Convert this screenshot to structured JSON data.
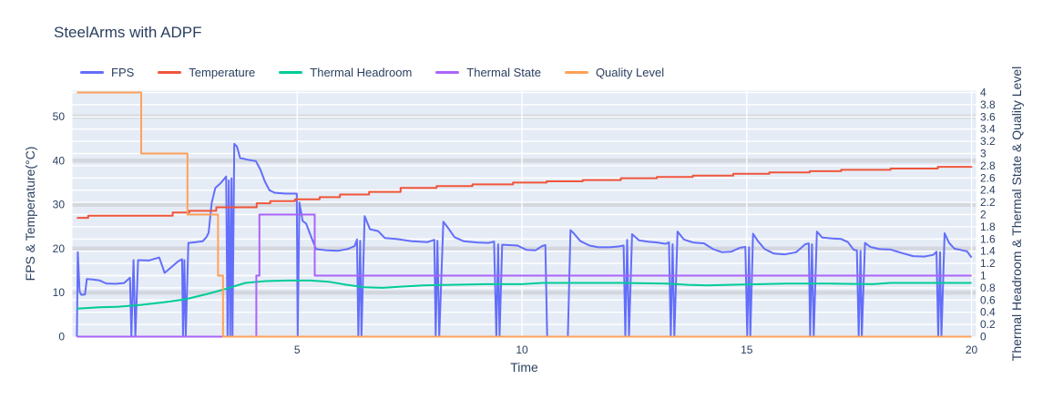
{
  "title": "SteelArms with ADPF",
  "styles": {
    "plot_bg": "#e5ecf6",
    "grid_white": "#ffffff",
    "grid_gray": "#d4d8de",
    "text": "#2a3f5f"
  },
  "chart_data": {
    "type": "line",
    "title": "SteelArms with ADPF",
    "xlabel": "Time",
    "ylabel_left": "FPS & Temperature(°C)",
    "ylabel_right": "Thermal Headroom & Thermal State & Quality Level",
    "legend_position": "top-left",
    "grid": true,
    "x_range": [
      0,
      20.1
    ],
    "x_ticks": [
      5,
      10,
      15,
      20
    ],
    "y_left": {
      "range": [
        0,
        55.9
      ],
      "ticks": [
        0,
        10,
        20,
        30,
        40,
        50
      ]
    },
    "y_right": {
      "range": [
        0,
        4.03
      ],
      "tick_step": 0.2,
      "tick_count": 21
    },
    "series": [
      {
        "name": "FPS",
        "color": "#636EFA",
        "axis": "left",
        "interp": "linear",
        "points": [
          [
            0.1,
            0
          ],
          [
            0.12,
            19.2
          ],
          [
            0.16,
            10.2
          ],
          [
            0.2,
            9.5
          ],
          [
            0.28,
            9.6
          ],
          [
            0.32,
            13.1
          ],
          [
            0.45,
            13.0
          ],
          [
            0.6,
            12.8
          ],
          [
            0.75,
            12.1
          ],
          [
            0.95,
            12.0
          ],
          [
            1.15,
            12.2
          ],
          [
            1.28,
            13.4
          ],
          [
            1.31,
            0
          ],
          [
            1.36,
            17.4
          ],
          [
            1.4,
            0
          ],
          [
            1.46,
            17.4
          ],
          [
            1.7,
            17.3
          ],
          [
            1.93,
            18.0
          ],
          [
            2.0,
            16.0
          ],
          [
            2.05,
            14.5
          ],
          [
            2.2,
            15.8
          ],
          [
            2.35,
            17.1
          ],
          [
            2.44,
            17.6
          ],
          [
            2.46,
            0
          ],
          [
            2.49,
            17.4
          ],
          [
            2.52,
            0
          ],
          [
            2.58,
            21.3
          ],
          [
            2.75,
            21.5
          ],
          [
            2.9,
            21.7
          ],
          [
            2.98,
            22.6
          ],
          [
            3.03,
            23.6
          ],
          [
            3.1,
            30.5
          ],
          [
            3.18,
            33.8
          ],
          [
            3.3,
            34.9
          ],
          [
            3.42,
            36.4
          ],
          [
            3.45,
            0
          ],
          [
            3.48,
            35.5
          ],
          [
            3.51,
            0
          ],
          [
            3.54,
            36.0
          ],
          [
            3.56,
            0
          ],
          [
            3.6,
            43.8
          ],
          [
            3.66,
            43.2
          ],
          [
            3.73,
            40.6
          ],
          [
            3.9,
            40.2
          ],
          [
            4.08,
            39.9
          ],
          [
            4.18,
            38.0
          ],
          [
            4.28,
            35.3
          ],
          [
            4.38,
            33.3
          ],
          [
            4.5,
            32.7
          ],
          [
            4.75,
            32.5
          ],
          [
            4.99,
            32.5
          ],
          [
            5.01,
            0
          ],
          [
            5.05,
            30.5
          ],
          [
            5.12,
            26.3
          ],
          [
            5.2,
            25.7
          ],
          [
            5.32,
            22.4
          ],
          [
            5.42,
            19.9
          ],
          [
            5.65,
            19.6
          ],
          [
            5.9,
            19.5
          ],
          [
            6.12,
            19.9
          ],
          [
            6.28,
            20.6
          ],
          [
            6.33,
            22.1
          ],
          [
            6.36,
            0
          ],
          [
            6.4,
            21.8
          ],
          [
            6.43,
            0
          ],
          [
            6.5,
            27.4
          ],
          [
            6.62,
            24.4
          ],
          [
            6.8,
            24.0
          ],
          [
            6.95,
            22.4
          ],
          [
            7.2,
            22.2
          ],
          [
            7.55,
            21.7
          ],
          [
            7.9,
            21.5
          ],
          [
            8.05,
            22.0
          ],
          [
            8.08,
            0
          ],
          [
            8.12,
            21.8
          ],
          [
            8.16,
            0
          ],
          [
            8.25,
            26.1
          ],
          [
            8.35,
            24.8
          ],
          [
            8.5,
            22.6
          ],
          [
            8.7,
            21.7
          ],
          [
            9.0,
            21.4
          ],
          [
            9.25,
            21.3
          ],
          [
            9.38,
            21.6
          ],
          [
            9.43,
            0
          ],
          [
            9.47,
            21.0
          ],
          [
            9.5,
            0
          ],
          [
            9.56,
            20.9
          ],
          [
            9.9,
            20.7
          ],
          [
            10.1,
            19.7
          ],
          [
            10.3,
            19.6
          ],
          [
            10.45,
            20.6
          ],
          [
            10.52,
            20.8
          ],
          [
            10.56,
            0
          ],
          [
            11.02,
            0
          ],
          [
            11.08,
            24.2
          ],
          [
            11.15,
            23.5
          ],
          [
            11.3,
            21.7
          ],
          [
            11.5,
            20.7
          ],
          [
            11.7,
            20.3
          ],
          [
            11.95,
            20.3
          ],
          [
            12.15,
            20.5
          ],
          [
            12.26,
            20.7
          ],
          [
            12.3,
            0
          ],
          [
            12.34,
            22.0
          ],
          [
            12.38,
            0
          ],
          [
            12.45,
            23.3
          ],
          [
            12.6,
            21.9
          ],
          [
            12.8,
            21.6
          ],
          [
            13.0,
            21.4
          ],
          [
            13.2,
            21.1
          ],
          [
            13.27,
            21.4
          ],
          [
            13.31,
            0
          ],
          [
            13.35,
            21.0
          ],
          [
            13.39,
            0
          ],
          [
            13.46,
            23.9
          ],
          [
            13.6,
            22.1
          ],
          [
            13.8,
            21.4
          ],
          [
            14.05,
            21.2
          ],
          [
            14.25,
            19.9
          ],
          [
            14.45,
            19.2
          ],
          [
            14.65,
            19.3
          ],
          [
            14.85,
            20.2
          ],
          [
            14.97,
            20.4
          ],
          [
            15.01,
            0
          ],
          [
            15.05,
            20.3
          ],
          [
            15.08,
            0
          ],
          [
            15.14,
            23.4
          ],
          [
            15.25,
            21.7
          ],
          [
            15.4,
            19.9
          ],
          [
            15.6,
            18.9
          ],
          [
            15.85,
            18.7
          ],
          [
            16.1,
            19.2
          ],
          [
            16.3,
            21.0
          ],
          [
            16.38,
            21.2
          ],
          [
            16.41,
            0
          ],
          [
            16.45,
            21.0
          ],
          [
            16.49,
            0
          ],
          [
            16.56,
            23.9
          ],
          [
            16.68,
            22.5
          ],
          [
            16.9,
            22.3
          ],
          [
            17.1,
            22.2
          ],
          [
            17.25,
            21.5
          ],
          [
            17.38,
            19.7
          ],
          [
            17.45,
            19.6
          ],
          [
            17.49,
            0
          ],
          [
            17.53,
            19.5
          ],
          [
            17.56,
            0
          ],
          [
            17.63,
            21.3
          ],
          [
            17.75,
            20.4
          ],
          [
            17.95,
            19.9
          ],
          [
            18.2,
            19.8
          ],
          [
            18.45,
            19.0
          ],
          [
            18.7,
            18.3
          ],
          [
            18.95,
            18.2
          ],
          [
            19.15,
            18.6
          ],
          [
            19.22,
            19.3
          ],
          [
            19.26,
            0
          ],
          [
            19.3,
            19.2
          ],
          [
            19.33,
            0
          ],
          [
            19.4,
            23.5
          ],
          [
            19.5,
            21.3
          ],
          [
            19.62,
            20.0
          ],
          [
            19.8,
            19.6
          ],
          [
            19.9,
            19.4
          ],
          [
            20.0,
            18.0
          ]
        ]
      },
      {
        "name": "Temperature",
        "color": "#EF553B",
        "axis": "left",
        "interp": "step",
        "points": [
          [
            0.1,
            27.0
          ],
          [
            0.35,
            27.5
          ],
          [
            2.23,
            28.2
          ],
          [
            2.6,
            28.6
          ],
          [
            3.2,
            29.4
          ],
          [
            4.1,
            30.3
          ],
          [
            4.4,
            30.8
          ],
          [
            4.95,
            31.2
          ],
          [
            5.5,
            31.7
          ],
          [
            5.95,
            32.3
          ],
          [
            6.6,
            32.9
          ],
          [
            7.3,
            33.8
          ],
          [
            8.1,
            34.2
          ],
          [
            8.9,
            34.6
          ],
          [
            9.8,
            35.0
          ],
          [
            10.55,
            35.3
          ],
          [
            11.35,
            35.6
          ],
          [
            12.2,
            36.0
          ],
          [
            13.0,
            36.3
          ],
          [
            13.8,
            36.6
          ],
          [
            14.7,
            37.0
          ],
          [
            15.5,
            37.3
          ],
          [
            16.4,
            37.6
          ],
          [
            17.1,
            37.9
          ],
          [
            18.2,
            38.2
          ],
          [
            19.25,
            38.6
          ],
          [
            20,
            38.7
          ]
        ]
      },
      {
        "name": "Thermal Headroom",
        "color": "#00CC96",
        "axis": "right",
        "interp": "linear",
        "points": [
          [
            0.1,
            0.46
          ],
          [
            0.6,
            0.48
          ],
          [
            1.0,
            0.49
          ],
          [
            1.5,
            0.52
          ],
          [
            2.0,
            0.56
          ],
          [
            2.5,
            0.61
          ],
          [
            3.0,
            0.7
          ],
          [
            3.4,
            0.78
          ],
          [
            3.85,
            0.88
          ],
          [
            4.3,
            0.91
          ],
          [
            4.8,
            0.92
          ],
          [
            5.3,
            0.92
          ],
          [
            5.7,
            0.9
          ],
          [
            6.1,
            0.85
          ],
          [
            6.5,
            0.81
          ],
          [
            6.9,
            0.8
          ],
          [
            7.3,
            0.82
          ],
          [
            7.8,
            0.84
          ],
          [
            8.4,
            0.85
          ],
          [
            9.2,
            0.86
          ],
          [
            10.0,
            0.86
          ],
          [
            10.45,
            0.88
          ],
          [
            11.2,
            0.88
          ],
          [
            12.2,
            0.88
          ],
          [
            13.2,
            0.87
          ],
          [
            13.7,
            0.85
          ],
          [
            14.1,
            0.84
          ],
          [
            14.6,
            0.85
          ],
          [
            15.3,
            0.86
          ],
          [
            15.9,
            0.87
          ],
          [
            16.8,
            0.87
          ],
          [
            17.8,
            0.86
          ],
          [
            18.2,
            0.88
          ],
          [
            19.0,
            0.88
          ],
          [
            20.0,
            0.88
          ]
        ]
      },
      {
        "name": "Thermal State",
        "color": "#AB63FA",
        "axis": "right",
        "interp": "step",
        "points": [
          [
            0.1,
            0
          ],
          [
            4.09,
            1
          ],
          [
            4.16,
            2
          ],
          [
            5.39,
            1
          ],
          [
            20,
            1
          ]
        ]
      },
      {
        "name": "Quality Level",
        "color": "#FFA15A",
        "axis": "right",
        "interp": "step",
        "points": [
          [
            0.1,
            4
          ],
          [
            1.53,
            3
          ],
          [
            2.56,
            2
          ],
          [
            3.24,
            1
          ],
          [
            3.35,
            0
          ],
          [
            20,
            0
          ]
        ]
      }
    ]
  }
}
